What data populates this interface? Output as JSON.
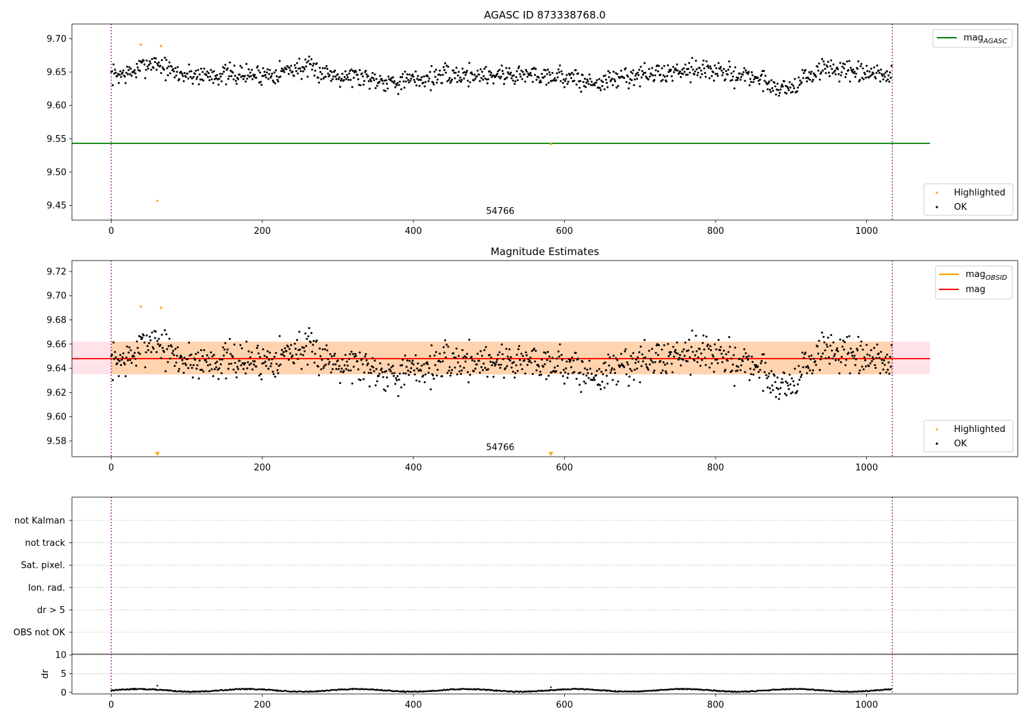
{
  "chart_data": [
    {
      "type": "scatter",
      "title": "AGASC ID 873338768.0",
      "xlim": [
        -52,
        1200
      ],
      "ylim": [
        9.428,
        9.722
      ],
      "xticks": [
        0,
        200,
        400,
        600,
        800,
        1000
      ],
      "yticks": [
        9.45,
        9.5,
        9.55,
        9.6,
        9.65,
        9.7
      ],
      "ytick_labels": [
        "9.45",
        "9.50",
        "9.55",
        "9.60",
        "9.65",
        "9.70"
      ],
      "vlines": [
        0,
        1034
      ],
      "text_annotations": [
        {
          "x": 515,
          "y": 9.437,
          "text": "54766"
        }
      ],
      "mag_agasc": {
        "value": 9.543,
        "x_range": [
          -52,
          1084
        ],
        "color": "#008000"
      },
      "series": [
        {
          "name": "Highlighted",
          "color": "#ffa500",
          "points": [
            [
              39,
              9.691
            ],
            [
              61,
              9.457
            ],
            [
              66,
              9.689
            ],
            [
              582,
              9.542
            ]
          ]
        },
        {
          "name": "OK",
          "color": "#000000",
          "n": 1034,
          "x_range": [
            0,
            1034
          ],
          "y_range": [
            9.612,
            9.686
          ]
        }
      ],
      "legends": [
        {
          "position": "top-right",
          "entries": [
            {
              "label": "mag",
              "sub": "AGASC",
              "kind": "line",
              "color": "#008000"
            }
          ]
        },
        {
          "position": "bottom-right",
          "entries": [
            {
              "label": "Highlighted",
              "kind": "marker",
              "color": "#ffa500"
            },
            {
              "label": "OK",
              "kind": "marker",
              "color": "#000000"
            }
          ]
        }
      ]
    },
    {
      "type": "scatter",
      "title": "Magnitude Estimates",
      "xlim": [
        -52,
        1200
      ],
      "ylim": [
        9.567,
        9.729
      ],
      "xticks": [
        0,
        200,
        400,
        600,
        800,
        1000
      ],
      "yticks": [
        9.58,
        9.6,
        9.62,
        9.64,
        9.66,
        9.68,
        9.7,
        9.72
      ],
      "ytick_labels": [
        "9.58",
        "9.60",
        "9.62",
        "9.64",
        "9.66",
        "9.68",
        "9.70",
        "9.72"
      ],
      "vlines": [
        0,
        1034
      ],
      "text_annotations": [
        {
          "x": 515,
          "y": 9.5725,
          "text": "54766"
        }
      ],
      "mag_line": {
        "value": 9.648,
        "x_range": [
          -52,
          1084
        ],
        "color": "#ff0000"
      },
      "mag_band": {
        "low": 9.635,
        "high": 9.662,
        "x_range": [
          -52,
          1084
        ]
      },
      "mag_obsid": {
        "x_range": [
          0,
          1034
        ],
        "low": 9.635,
        "high": 9.662,
        "color": "#ffa500"
      },
      "offscale_markers": [
        {
          "x": 61,
          "color": "#ffa500"
        },
        {
          "x": 582,
          "color": "#ffa500"
        }
      ],
      "series": [
        {
          "name": "Highlighted",
          "color": "#ffa500",
          "points": [
            [
              39,
              9.691
            ],
            [
              66,
              9.69
            ]
          ]
        },
        {
          "name": "OK",
          "color": "#000000",
          "n": 1034,
          "x_range": [
            0,
            1034
          ],
          "y_range": [
            9.611,
            9.686
          ]
        }
      ],
      "legends": [
        {
          "position": "top-right",
          "entries": [
            {
              "label": "mag",
              "sub": "OBSID",
              "kind": "line",
              "color": "#ffa500"
            },
            {
              "label": "mag",
              "kind": "line",
              "color": "#ff0000"
            }
          ]
        },
        {
          "position": "bottom-right",
          "entries": [
            {
              "label": "Highlighted",
              "kind": "marker",
              "color": "#ffa500"
            },
            {
              "label": "OK",
              "kind": "marker",
              "color": "#000000"
            }
          ]
        }
      ]
    },
    {
      "type": "scatter",
      "title": "",
      "xlim": [
        -52,
        1200
      ],
      "categories": [
        "OBS not OK",
        "dr > 5",
        "Ion. rad.",
        "Sat. pixel.",
        "not track",
        "not Kalman"
      ],
      "flagged_points": [],
      "vlines": [
        0,
        1034
      ]
    },
    {
      "type": "scatter",
      "title": "",
      "xlim": [
        -52,
        1200
      ],
      "ylim": [
        -0.4,
        10.2
      ],
      "xticks": [
        0,
        200,
        400,
        600,
        800,
        1000
      ],
      "yticks": [
        0,
        5,
        10
      ],
      "ytick_labels": [
        "0",
        "5",
        "10"
      ],
      "ylabel": "dr",
      "vlines": [
        0,
        1034
      ],
      "series": [
        {
          "name": "dr",
          "color": "#000000",
          "n": 1034,
          "x_range": [
            0,
            1034
          ],
          "y_range": [
            0,
            1.2
          ],
          "spikes": [
            [
              61,
              1.8
            ],
            [
              582,
              1.4
            ]
          ]
        }
      ]
    }
  ]
}
